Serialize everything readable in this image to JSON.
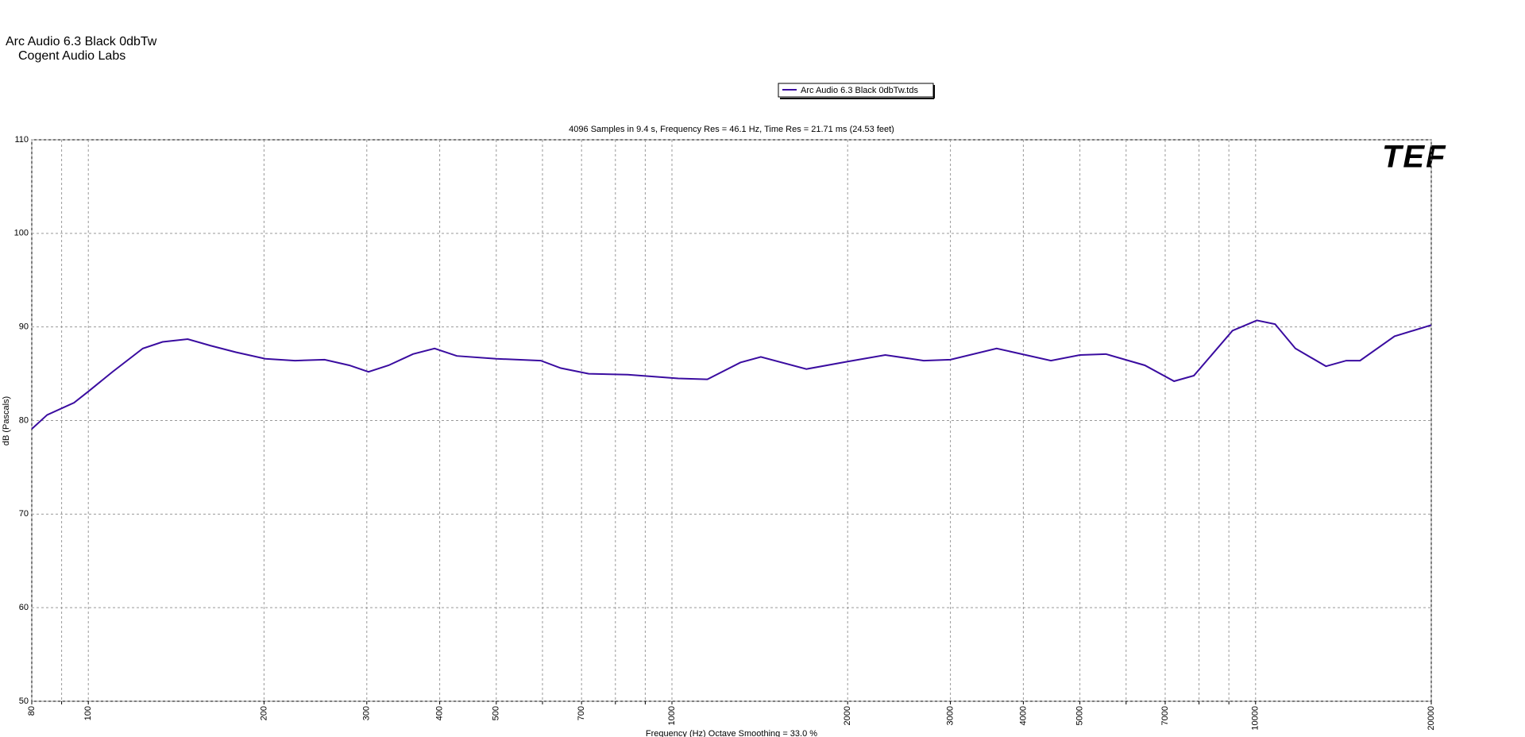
{
  "chart_data": {
    "type": "line",
    "title": "Arc Audio 6.3 Black  0dbTw",
    "subtitle": "Cogent Audio Labs",
    "caption": "4096 Samples in 9.4 s, Frequency Res = 46.1 Hz, Time Res = 21.71 ms (24.53 feet)",
    "x_label": "Frequency (Hz) Octave Smoothing = 33.0 %",
    "y_label": "dB (Pascals)",
    "logo": "TEF",
    "x_log": true,
    "grid": true,
    "legend": "top",
    "xlim": [
      80,
      20000
    ],
    "xticks": [
      80,
      100,
      200,
      300,
      400,
      500,
      700,
      1000,
      2000,
      3000,
      4000,
      5000,
      7000,
      10000,
      20000
    ],
    "xminor": [
      90,
      600,
      800,
      900,
      6000,
      8000,
      9000
    ],
    "ylim": [
      50,
      110
    ],
    "yticks": [
      50,
      60,
      70,
      80,
      90,
      100,
      110
    ],
    "x": [
      80,
      85,
      94.5,
      100,
      110,
      124,
      134,
      148,
      162,
      179,
      201,
      226,
      254,
      280,
      302,
      327,
      360,
      392,
      428,
      500,
      596,
      645,
      720,
      840,
      1025,
      1150,
      1310,
      1420,
      1700,
      2000,
      2320,
      2700,
      3000,
      3600,
      4460,
      5000,
      5540,
      6460,
      7250,
      7840,
      9130,
      10050,
      10800,
      11700,
      13200,
      14300,
      15100,
      17300,
      20000
    ],
    "series": [
      {
        "name": "Arc Audio 6.3 Black  0dbTw.tds",
        "color": "#3a0ca0",
        "values": [
          79.1,
          80.6,
          81.9,
          83.1,
          85.2,
          87.7,
          88.4,
          88.7,
          88.0,
          87.3,
          86.6,
          86.4,
          86.5,
          85.9,
          85.2,
          85.9,
          87.1,
          87.7,
          86.9,
          86.6,
          86.4,
          85.6,
          85.0,
          84.9,
          84.5,
          84.4,
          86.2,
          86.8,
          85.5,
          86.3,
          87.0,
          86.4,
          86.5,
          87.7,
          86.4,
          87.0,
          87.1,
          85.9,
          84.2,
          84.8,
          89.6,
          90.7,
          90.3,
          87.7,
          85.8,
          86.4,
          86.4,
          89.0,
          90.2
        ]
      }
    ]
  }
}
